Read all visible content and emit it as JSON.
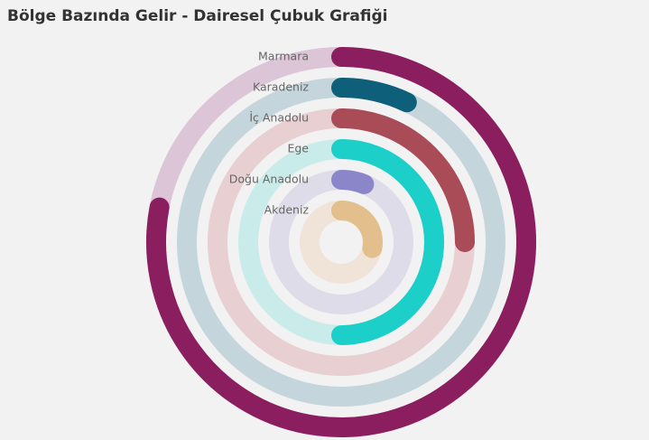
{
  "chart_data": {
    "type": "radial-bar",
    "title": "Bölge Bazında Gelir - Dairesel Çubuk Grafiği",
    "ylim": [
      0,
      100
    ],
    "categories": [
      "Marmara",
      "Karadeniz",
      "İç Anadolu",
      "Ege",
      "Doğu Anadolu",
      "Akdeniz"
    ],
    "values": [
      78,
      7,
      25,
      50,
      6,
      28
    ],
    "colors": [
      "#8b1e5e",
      "#0e5f7a",
      "#a94c58",
      "#1ccfc9",
      "#8b86c9",
      "#e2bf8c"
    ],
    "track_colors": [
      "#dcc5d6",
      "#c4d6dc",
      "#e7cfd2",
      "#c9ecea",
      "#dedce9",
      "#efe4d7"
    ]
  }
}
